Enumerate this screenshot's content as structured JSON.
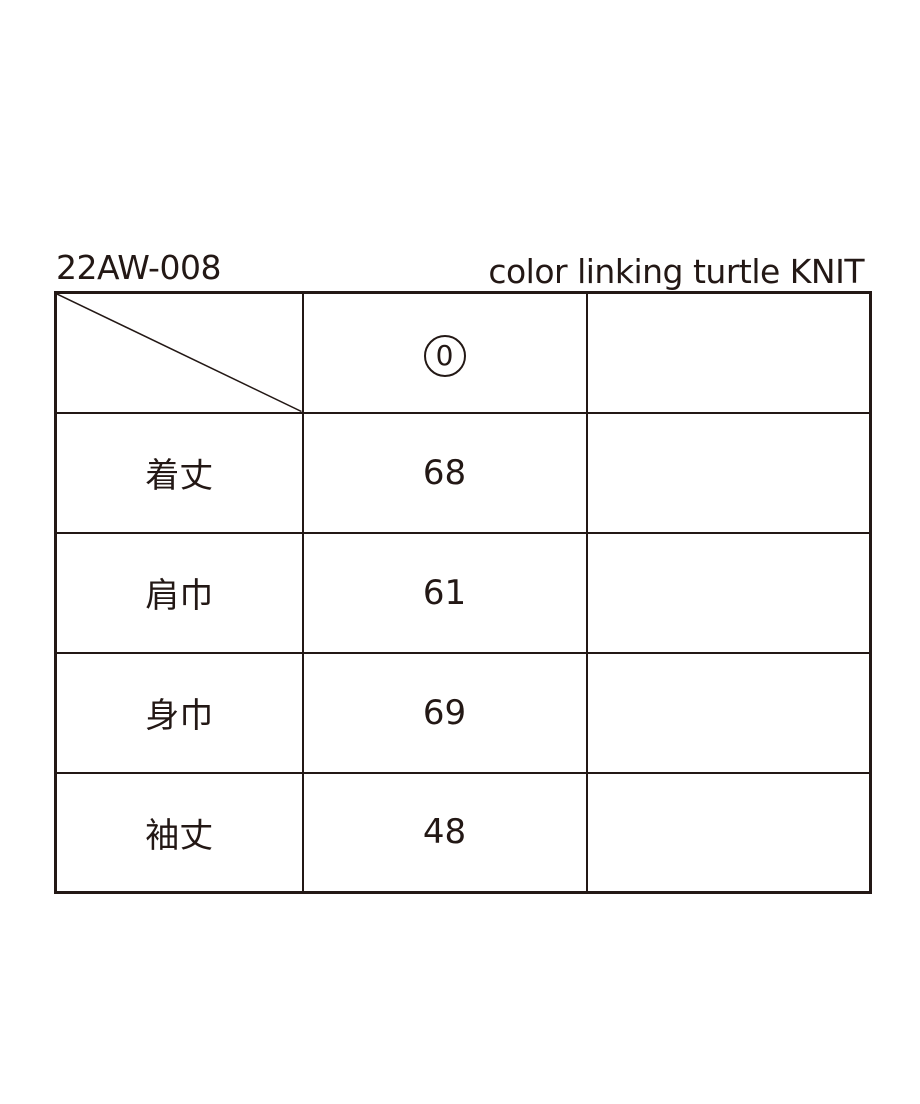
{
  "header": {
    "code": "22AW-008",
    "product_name": "color linking turtle KNIT"
  },
  "table": {
    "columns": [
      "",
      "0",
      ""
    ],
    "rows": [
      {
        "label": "着丈",
        "values": [
          "68",
          ""
        ]
      },
      {
        "label": "肩巾",
        "values": [
          "61",
          ""
        ]
      },
      {
        "label": "身巾",
        "values": [
          "69",
          ""
        ]
      },
      {
        "label": "袖丈",
        "values": [
          "48",
          ""
        ]
      }
    ]
  }
}
